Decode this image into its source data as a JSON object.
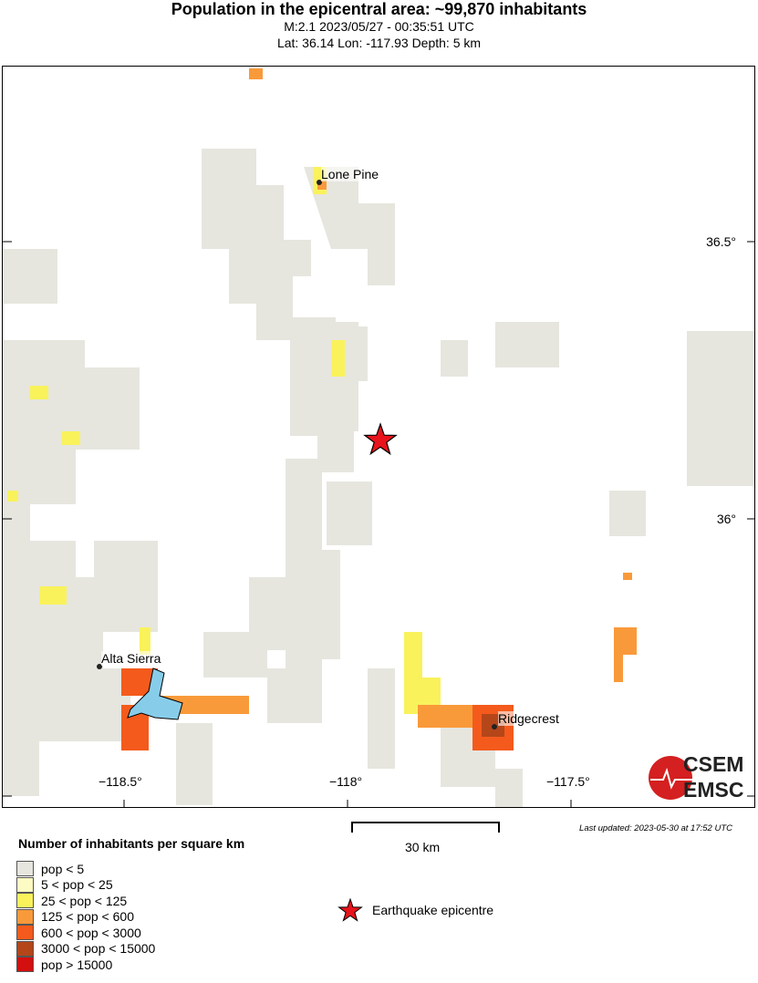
{
  "header": {
    "title": "Population in the epicentral area: ~99,870 inhabitants",
    "event_line": "M:2.1 2023/05/27 - 00:35:51 UTC",
    "location_line": "Lat: 36.14 Lon: -117.93 Depth: 5 km"
  },
  "map": {
    "epicentre": {
      "lat": 36.14,
      "lon": -117.93,
      "icon": "red-star-icon"
    },
    "lat_ticks": [
      "36.5°",
      "36°"
    ],
    "lon_ticks": [
      "−118.5°",
      "−118°",
      "−117.5°"
    ],
    "cities": [
      {
        "name": "Lone Pine"
      },
      {
        "name": "Alta Sierra"
      },
      {
        "name": "Ridgecrest"
      }
    ],
    "water_color": "#87cdea"
  },
  "scale_bar": {
    "label": "30 km"
  },
  "last_updated": "Last updated: 2023-05-30 at 17:52 UTC",
  "logo": {
    "top": "CSEM",
    "bottom": "EMSC"
  },
  "legend": {
    "title": "Number of inhabitants per square km",
    "items": [
      {
        "label": "pop < 5",
        "color": "#e6e6df"
      },
      {
        "label": "5 < pop < 25",
        "color": "#fdfbc4"
      },
      {
        "label": "25 < pop < 125",
        "color": "#f9f25b"
      },
      {
        "label": "125 < pop < 600",
        "color": "#f99a3a"
      },
      {
        "label": "600 < pop < 3000",
        "color": "#f45a1c"
      },
      {
        "label": "3000 < pop < 15000",
        "color": "#b4461a"
      },
      {
        "label": "pop > 15000",
        "color": "#d40f0f"
      }
    ],
    "epicentre_label": "Earthquake epicentre"
  }
}
